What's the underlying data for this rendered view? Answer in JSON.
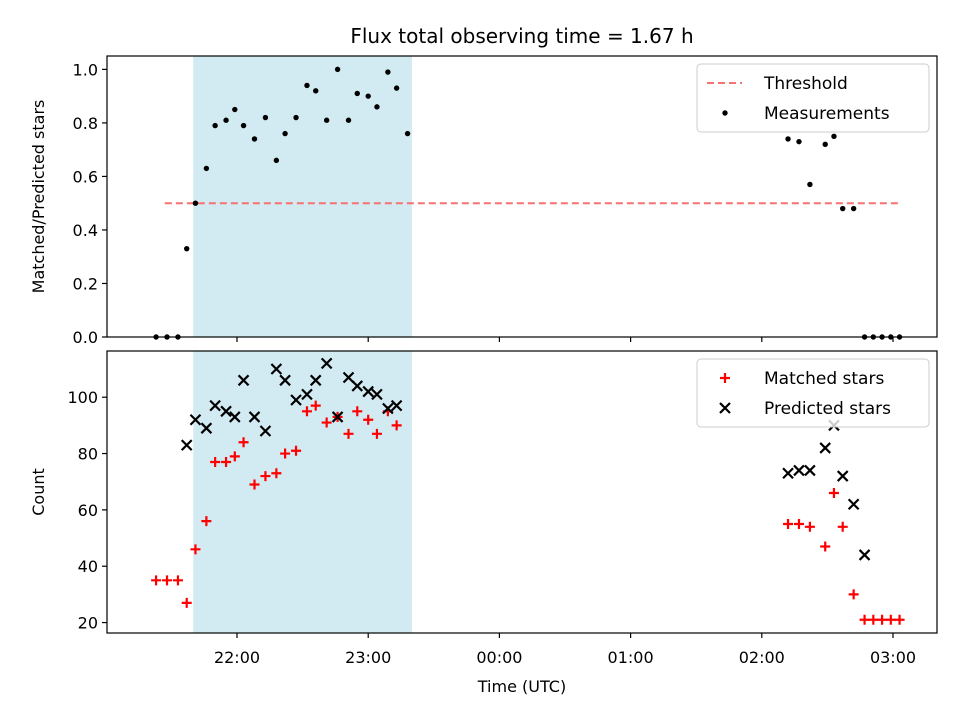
{
  "title": "Flux total observing time = 1.67 h",
  "xlabel": "Time (UTC)",
  "colors": {
    "threshold": "#f87171",
    "measurements": "#000000",
    "matched": "#ff0000",
    "predicted": "#000000",
    "shade": "#add8e6"
  },
  "chart_data": [
    {
      "type": "scatter",
      "ylabel": "Matched/Predicted stars",
      "ylim": [
        0,
        1.05
      ],
      "yticks": [
        "0.0",
        "0.2",
        "0.4",
        "0.6",
        "0.8",
        "1.0"
      ],
      "xticks": [
        "22:00",
        "23:00",
        "00:00",
        "01:00",
        "02:00",
        "03:00"
      ],
      "show_xtick_labels": false,
      "shaded_interval": [
        "21:40",
        "23:20"
      ],
      "legend_position": "upper right",
      "series": [
        {
          "name": "Threshold",
          "kind": "dashed-line",
          "x": [
            "21:27",
            "03:04"
          ],
          "y": [
            0.5,
            0.5
          ]
        },
        {
          "name": "Measurements",
          "kind": "dot",
          "x": [
            "21:23",
            "21:28",
            "21:33",
            "21:37",
            "21:41",
            "21:46",
            "21:50",
            "21:55",
            "21:59",
            "22:03",
            "22:08",
            "22:13",
            "22:18",
            "22:22",
            "22:27",
            "22:32",
            "22:36",
            "22:41",
            "22:46",
            "22:51",
            "22:55",
            "23:00",
            "23:04",
            "23:09",
            "23:13",
            "23:18",
            "02:12",
            "02:17",
            "02:22",
            "02:29",
            "02:33",
            "02:37",
            "02:42",
            "02:47",
            "02:51",
            "02:55",
            "02:59",
            "03:03"
          ],
          "y": [
            0.0,
            0.0,
            0.0,
            0.33,
            0.5,
            0.63,
            0.79,
            0.81,
            0.85,
            0.79,
            0.74,
            0.82,
            0.66,
            0.76,
            0.82,
            0.94,
            0.92,
            0.81,
            1.0,
            0.81,
            0.91,
            0.9,
            0.86,
            0.99,
            0.93,
            0.76,
            0.74,
            0.73,
            0.57,
            0.72,
            0.75,
            0.48,
            0.48,
            0.0,
            0.0,
            0.0,
            0.0,
            0.0
          ]
        }
      ]
    },
    {
      "type": "scatter",
      "ylabel": "Count",
      "ylim": [
        16.3,
        116.4
      ],
      "yticks": [
        "20",
        "40",
        "60",
        "80",
        "100"
      ],
      "xticks": [
        "22:00",
        "23:00",
        "00:00",
        "01:00",
        "02:00",
        "03:00"
      ],
      "show_xtick_labels": true,
      "shaded_interval": [
        "21:40",
        "23:20"
      ],
      "legend_position": "upper right",
      "series": [
        {
          "name": "Matched stars",
          "kind": "plus",
          "x": [
            "21:23",
            "21:28",
            "21:33",
            "21:37",
            "21:41",
            "21:46",
            "21:50",
            "21:55",
            "21:59",
            "22:03",
            "22:08",
            "22:13",
            "22:18",
            "22:22",
            "22:27",
            "22:32",
            "22:36",
            "22:41",
            "22:46",
            "22:51",
            "22:55",
            "23:00",
            "23:04",
            "23:09",
            "23:13",
            "02:12",
            "02:17",
            "02:22",
            "02:29",
            "02:33",
            "02:37",
            "02:42",
            "02:47",
            "02:51",
            "02:55",
            "02:59",
            "03:03"
          ],
          "y": [
            35,
            35,
            35,
            27,
            46,
            56,
            77,
            77,
            79,
            84,
            69,
            72,
            73,
            80,
            81,
            95,
            97,
            91,
            93,
            87,
            95,
            92,
            87,
            95,
            90,
            55,
            55,
            54,
            47,
            66,
            54,
            30,
            21,
            21,
            21,
            21,
            21
          ]
        },
        {
          "name": "Predicted stars",
          "kind": "x",
          "x": [
            "21:37",
            "21:41",
            "21:46",
            "21:50",
            "21:55",
            "21:59",
            "22:03",
            "22:08",
            "22:13",
            "22:18",
            "22:22",
            "22:27",
            "22:32",
            "22:36",
            "22:41",
            "22:46",
            "22:51",
            "22:55",
            "23:00",
            "23:04",
            "23:09",
            "23:13",
            "02:12",
            "02:17",
            "02:22",
            "02:29",
            "02:33",
            "02:37",
            "02:42",
            "02:47"
          ],
          "y": [
            83,
            92,
            89,
            97,
            95,
            93,
            106,
            93,
            88,
            110,
            106,
            99,
            101,
            106,
            112,
            93,
            107,
            104,
            102,
            101,
            96,
            97,
            73,
            74,
            74,
            82,
            90,
            72,
            62,
            44
          ]
        }
      ]
    }
  ]
}
